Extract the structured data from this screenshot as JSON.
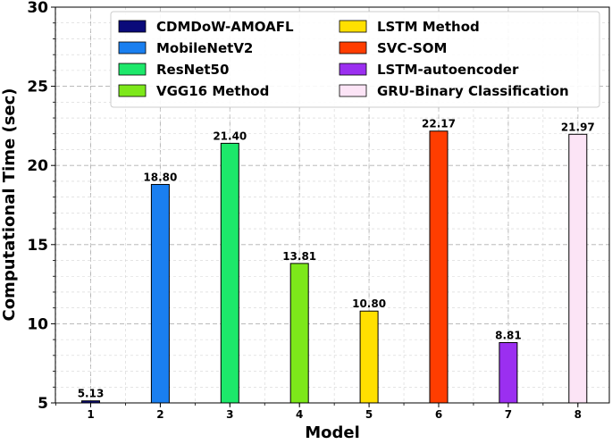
{
  "chart_data": {
    "type": "bar",
    "title": "",
    "xlabel": "Model",
    "ylabel": "Computational Time (sec)",
    "ylim": [
      5,
      30
    ],
    "yticks": [
      "5",
      "10",
      "15",
      "20",
      "25",
      "30"
    ],
    "categories": [
      "1",
      "2",
      "3",
      "4",
      "5",
      "6",
      "7",
      "8"
    ],
    "values": [
      5.13,
      18.8,
      21.4,
      13.81,
      10.8,
      22.17,
      8.81,
      21.97
    ],
    "value_labels": [
      "5.13",
      "18.80",
      "21.40",
      "13.81",
      "10.80",
      "22.17",
      "8.81",
      "21.97"
    ],
    "series_names": [
      "CDMDoW-AMOAFL",
      "MobileNetV2",
      "ResNet50",
      "VGG16 Method",
      "LSTM Method",
      "SVC-SOM",
      "LSTM-autoencoder",
      "GRU-Binary Classification"
    ],
    "colors": [
      "#0a0a7a",
      "#1a7ff0",
      "#1de86a",
      "#7de81a",
      "#ffe000",
      "#ff3d00",
      "#9b2ff0",
      "#fce4f6"
    ],
    "grid": true,
    "legend_position": "top"
  }
}
